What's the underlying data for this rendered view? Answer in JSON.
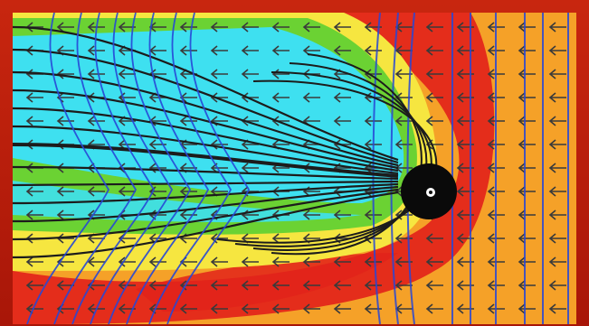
{
  "figure": {
    "kind": "magnetosphere-simulation",
    "elements": [
      "color-contour-field",
      "velocity-arrows",
      "magnetic-field-lines",
      "planet-body"
    ]
  },
  "colors": {
    "frame": "#b9200c",
    "field_orange": "#f5a128",
    "field_yellow": "#f6e640",
    "field_green": "#6bd233",
    "field_cyan": "#3ee0f0",
    "field_red": "#e2231a",
    "arrow": "#3a3a3a",
    "closed_field_line": "#1c1c1c",
    "open_field_line": "#2747d6",
    "planet": "#0a0a0a"
  },
  "icons": [
    "planet-icon"
  ]
}
